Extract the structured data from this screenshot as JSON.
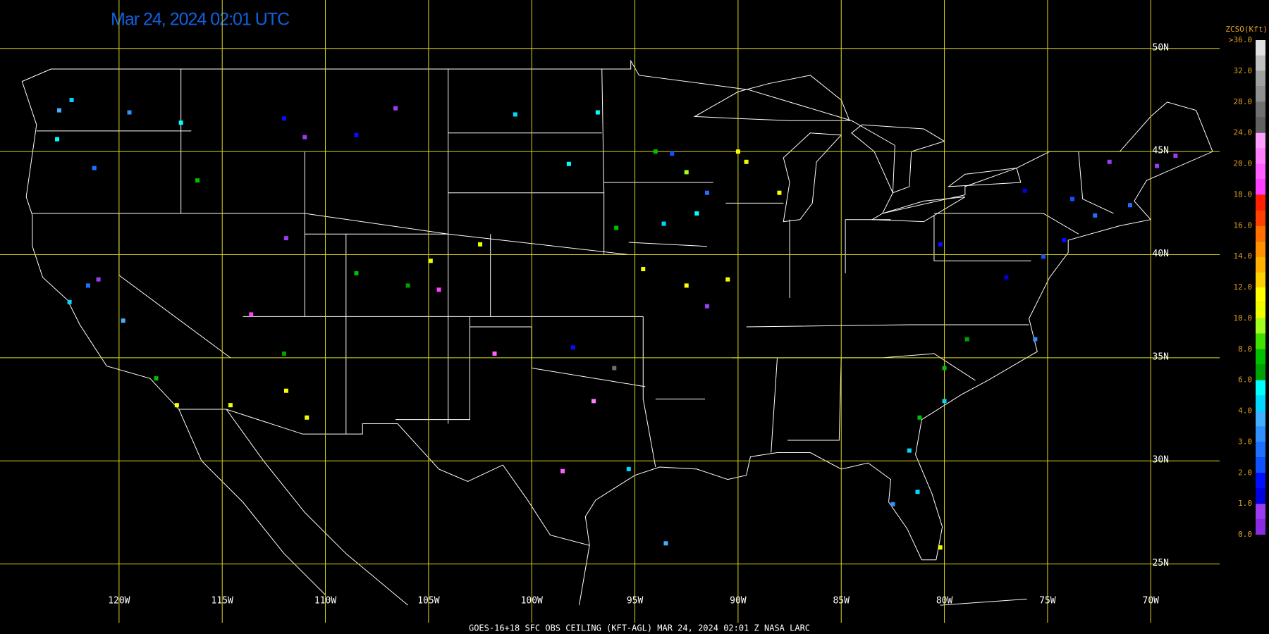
{
  "title": "Mar 24, 2024 02:01 UTC",
  "footer": "GOES-16+18  SFC OBS CEILING (KFT-AGL)  MAR 24, 2024 02:01 Z   NASA LARC",
  "lonlim": [
    -125.77,
    -66.66
  ],
  "latlim": [
    22.15,
    52.35
  ],
  "lon_ticks": [
    {
      "value": -120,
      "label": "120W"
    },
    {
      "value": -115,
      "label": "115W"
    },
    {
      "value": -110,
      "label": "110W"
    },
    {
      "value": -105,
      "label": "105W"
    },
    {
      "value": -100,
      "label": "100W"
    },
    {
      "value": -95,
      "label": "95W"
    },
    {
      "value": -90,
      "label": "90W"
    },
    {
      "value": -85,
      "label": "85W"
    },
    {
      "value": -80,
      "label": "80W"
    },
    {
      "value": -75,
      "label": "75W"
    },
    {
      "value": -70,
      "label": "70W"
    }
  ],
  "lat_ticks": [
    {
      "value": 50,
      "label": "50N"
    },
    {
      "value": 45,
      "label": "45N"
    },
    {
      "value": 40,
      "label": "40N"
    },
    {
      "value": 35,
      "label": "35N"
    },
    {
      "value": 30,
      "label": "30N"
    },
    {
      "value": 25,
      "label": "25N"
    }
  ],
  "colorbar": {
    "title": "ZCSO(Kft)",
    "ticks": [
      {
        "value": 0,
        "label": "0.0"
      },
      {
        "value": 1,
        "label": "1.0"
      },
      {
        "value": 2,
        "label": "2.0"
      },
      {
        "value": 3,
        "label": "3.0"
      },
      {
        "value": 4,
        "label": "4.0"
      },
      {
        "value": 6,
        "label": "6.0"
      },
      {
        "value": 8,
        "label": "8.0"
      },
      {
        "value": 10,
        "label": "10.0"
      },
      {
        "value": 12,
        "label": "12.0"
      },
      {
        "value": 14,
        "label": "14.0"
      },
      {
        "value": 16,
        "label": "16.0"
      },
      {
        "value": 18,
        "label": "18.0"
      },
      {
        "value": 20,
        "label": "20.0"
      },
      {
        "value": 24,
        "label": "24.0"
      },
      {
        "value": 28,
        "label": "28.0"
      },
      {
        "value": 32,
        "label": "32.0"
      },
      {
        "value": 36,
        "label": ">36.0"
      }
    ],
    "colors": [
      "#8a2be2",
      "#9b3cf0",
      "#0000e0",
      "#0010ff",
      "#1050ff",
      "#2070ff",
      "#3090ff",
      "#40b0ff",
      "#00d8ff",
      "#00ffff",
      "#00a000",
      "#00c000",
      "#40e000",
      "#a0ff20",
      "#f0ff00",
      "#ffff00",
      "#ffd000",
      "#ffb000",
      "#ff9000",
      "#ff7000",
      "#ff4000",
      "#ff2000",
      "#ff40ff",
      "#ff60ff",
      "#ff80ff",
      "#ffa0ff",
      "#606060",
      "#707070",
      "#909090",
      "#a0a0a0",
      "#c0c0c0",
      "#e0e0e0"
    ]
  },
  "stations": [
    {
      "lon": -122.3,
      "lat": 47.5,
      "value": 4.5
    },
    {
      "lon": -122.9,
      "lat": 47.0,
      "value": 3.5
    },
    {
      "lon": -123.0,
      "lat": 45.6,
      "value": 5
    },
    {
      "lon": -121.2,
      "lat": 44.2,
      "value": 2.5
    },
    {
      "lon": -117.0,
      "lat": 46.4,
      "value": 5.5
    },
    {
      "lon": -119.5,
      "lat": 46.9,
      "value": 3
    },
    {
      "lon": -116.2,
      "lat": 43.6,
      "value": 7
    },
    {
      "lon": -112.0,
      "lat": 46.6,
      "value": 1.5
    },
    {
      "lon": -111.0,
      "lat": 45.7,
      "value": 0.5
    },
    {
      "lon": -108.5,
      "lat": 45.8,
      "value": 1.5
    },
    {
      "lon": -106.6,
      "lat": 47.1,
      "value": 0.5
    },
    {
      "lon": -100.8,
      "lat": 46.8,
      "value": 4.5
    },
    {
      "lon": -98.2,
      "lat": 44.4,
      "value": 5
    },
    {
      "lon": -96.8,
      "lat": 46.9,
      "value": 5
    },
    {
      "lon": -94.0,
      "lat": 45.0,
      "value": 7
    },
    {
      "lon": -93.2,
      "lat": 44.9,
      "value": 2
    },
    {
      "lon": -92.5,
      "lat": 44.0,
      "value": 9
    },
    {
      "lon": -90.0,
      "lat": 45.0,
      "value": 11
    },
    {
      "lon": -89.6,
      "lat": 44.5,
      "value": 10.5
    },
    {
      "lon": -91.5,
      "lat": 43.0,
      "value": 2.5
    },
    {
      "lon": -93.6,
      "lat": 41.5,
      "value": 4.5
    },
    {
      "lon": -95.9,
      "lat": 41.3,
      "value": 7
    },
    {
      "lon": -90.5,
      "lat": 38.8,
      "value": 10.5
    },
    {
      "lon": -94.6,
      "lat": 39.3,
      "value": 10.8
    },
    {
      "lon": -92.5,
      "lat": 38.5,
      "value": 11
    },
    {
      "lon": -91.5,
      "lat": 37.5,
      "value": 0.5
    },
    {
      "lon": -88.0,
      "lat": 43.0,
      "value": 11
    },
    {
      "lon": -92.0,
      "lat": 42.0,
      "value": 5.2
    },
    {
      "lon": -104.9,
      "lat": 39.7,
      "value": 10.5
    },
    {
      "lon": -106.0,
      "lat": 38.5,
      "value": 6.5
    },
    {
      "lon": -108.5,
      "lat": 39.1,
      "value": 7
    },
    {
      "lon": -104.5,
      "lat": 38.3,
      "value": 18.5
    },
    {
      "lon": -102.5,
      "lat": 40.5,
      "value": 10.5
    },
    {
      "lon": -111.9,
      "lat": 33.4,
      "value": 11
    },
    {
      "lon": -110.9,
      "lat": 32.1,
      "value": 10.5
    },
    {
      "lon": -114.6,
      "lat": 32.7,
      "value": 10.3
    },
    {
      "lon": -112.0,
      "lat": 35.2,
      "value": 6.5
    },
    {
      "lon": -122.4,
      "lat": 37.7,
      "value": 4.5
    },
    {
      "lon": -121.5,
      "lat": 38.5,
      "value": 2.5
    },
    {
      "lon": -118.2,
      "lat": 34.0,
      "value": 7
    },
    {
      "lon": -117.2,
      "lat": 32.7,
      "value": 11
    },
    {
      "lon": -119.8,
      "lat": 36.8,
      "value": 3.5
    },
    {
      "lon": -121.0,
      "lat": 38.8,
      "value": 0.5
    },
    {
      "lon": -97.0,
      "lat": 32.9,
      "value": 20.5
    },
    {
      "lon": -95.3,
      "lat": 29.6,
      "value": 4.5
    },
    {
      "lon": -98.5,
      "lat": 29.5,
      "value": 19
    },
    {
      "lon": -96.0,
      "lat": 34.5,
      "value": 26
    },
    {
      "lon": -101.8,
      "lat": 35.2,
      "value": 19
    },
    {
      "lon": -98.0,
      "lat": 35.5,
      "value": 1.5
    },
    {
      "lon": -111.9,
      "lat": 40.8,
      "value": 0.5
    },
    {
      "lon": -113.6,
      "lat": 37.1,
      "value": 18.5
    },
    {
      "lon": -73.8,
      "lat": 42.7,
      "value": 2
    },
    {
      "lon": -71.0,
      "lat": 42.4,
      "value": 2.5
    },
    {
      "lon": -74.2,
      "lat": 40.7,
      "value": 1.5
    },
    {
      "lon": -75.2,
      "lat": 39.9,
      "value": 2.2
    },
    {
      "lon": -77.0,
      "lat": 38.9,
      "value": 1.2
    },
    {
      "lon": -80.2,
      "lat": 40.5,
      "value": 1.5
    },
    {
      "lon": -69.7,
      "lat": 44.3,
      "value": 0.8
    },
    {
      "lon": -72.7,
      "lat": 41.9,
      "value": 2.5
    },
    {
      "lon": -76.1,
      "lat": 43.1,
      "value": 1.2
    },
    {
      "lon": -68.8,
      "lat": 44.8,
      "value": 0.5
    },
    {
      "lon": -72.0,
      "lat": 44.5,
      "value": 0.8
    },
    {
      "lon": -80.0,
      "lat": 32.9,
      "value": 4.5
    },
    {
      "lon": -81.2,
      "lat": 32.1,
      "value": 7
    },
    {
      "lon": -81.7,
      "lat": 30.5,
      "value": 4.5
    },
    {
      "lon": -78.9,
      "lat": 35.9,
      "value": 6.5
    },
    {
      "lon": -75.6,
      "lat": 35.9,
      "value": 3
    },
    {
      "lon": -80.2,
      "lat": 25.8,
      "value": 10.5
    },
    {
      "lon": -82.5,
      "lat": 27.9,
      "value": 3.2
    },
    {
      "lon": -81.3,
      "lat": 28.5,
      "value": 4.5
    },
    {
      "lon": -80.0,
      "lat": 34.5,
      "value": 7.5
    },
    {
      "lon": -93.5,
      "lat": 26.0,
      "value": 3.5
    }
  ]
}
